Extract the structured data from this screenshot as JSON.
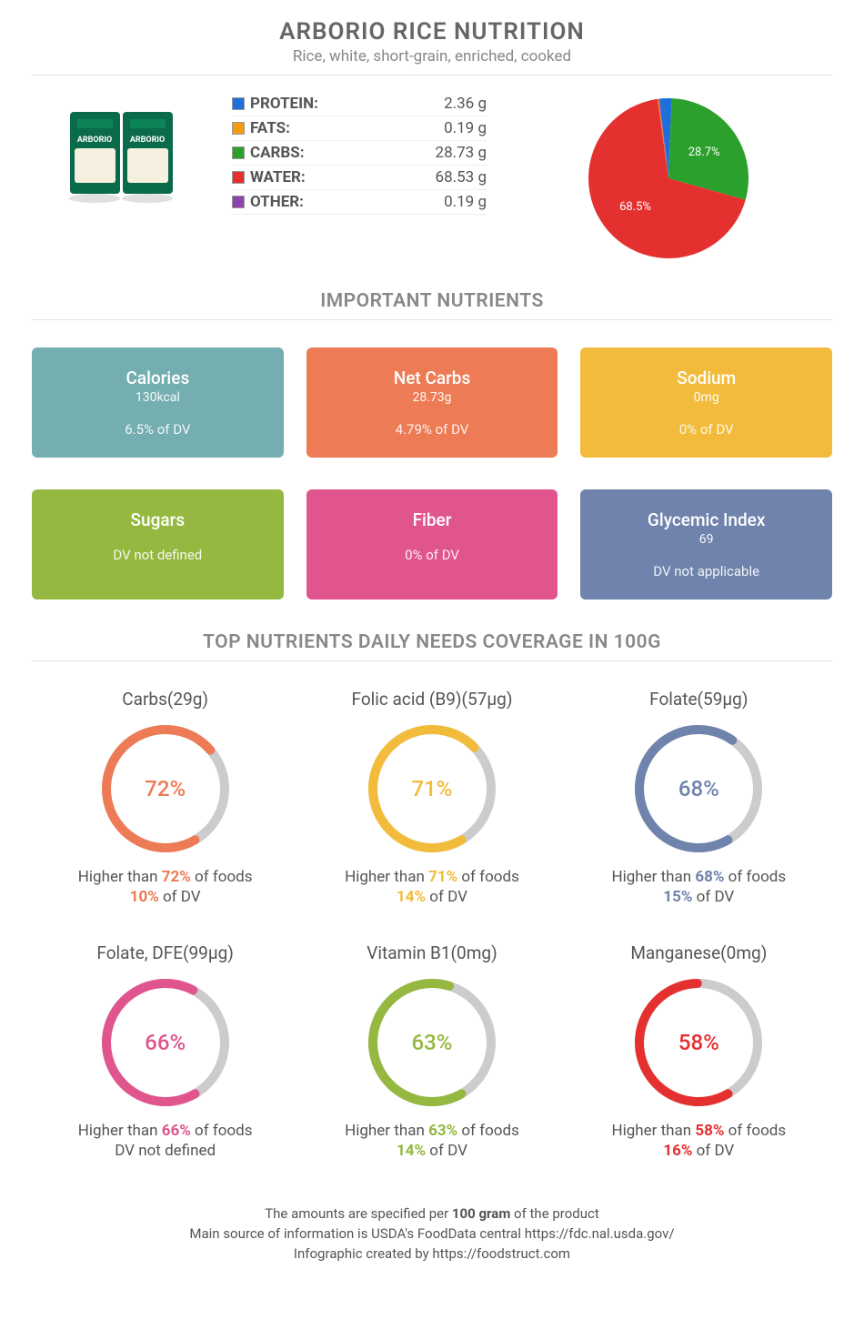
{
  "header": {
    "title": "ARBORIO RICE NUTRITION",
    "subtitle": "Rice, white, short-grain, enriched, cooked"
  },
  "macros": {
    "rows": [
      {
        "label": "PROTEIN:",
        "value": "2.36 g",
        "color": "#1e6fd9"
      },
      {
        "label": "FATS:",
        "value": "0.19 g",
        "color": "#f39c12"
      },
      {
        "label": "CARBS:",
        "value": "28.73 g",
        "color": "#2ca02c"
      },
      {
        "label": "WATER:",
        "value": "68.53 g",
        "color": "#e53030"
      },
      {
        "label": "OTHER:",
        "value": "0.19 g",
        "color": "#8e44ad"
      }
    ],
    "pie": {
      "slices": [
        {
          "label": "28.7%",
          "value": 28.7,
          "color": "#2ca02c"
        },
        {
          "label": "68.5%",
          "value": 68.5,
          "color": "#e53030"
        }
      ],
      "small_slices": [
        {
          "value": 2.4,
          "color": "#1e6fd9"
        },
        {
          "value": 0.2,
          "color": "#f39c12"
        },
        {
          "value": 0.2,
          "color": "#8e44ad"
        }
      ],
      "label_fontsize": 13,
      "label_color": "#ffffff"
    }
  },
  "important_title": "IMPORTANT NUTRIENTS",
  "cards_row1": [
    {
      "title": "Calories",
      "value": "130kcal",
      "dv": "6.5% of DV",
      "bg": "#74aeb0"
    },
    {
      "title": "Net Carbs",
      "value": "28.73g",
      "dv": "4.79% of DV",
      "bg": "#ed7b55"
    },
    {
      "title": "Sodium",
      "value": "0mg",
      "dv": "0% of DV",
      "bg": "#f2bb3b"
    }
  ],
  "cards_row2": [
    {
      "title": "Sugars",
      "value": "",
      "dv": "DV not defined",
      "bg": "#94b840"
    },
    {
      "title": "Fiber",
      "value": "",
      "dv": "0% of DV",
      "bg": "#e0558e"
    },
    {
      "title": "Glycemic Index",
      "value": "69",
      "dv": "DV not applicable",
      "bg": "#6f83ac"
    }
  ],
  "top_nutrients_title": "TOP NUTRIENTS DAILY NEEDS COVERAGE IN 100G",
  "donuts": [
    {
      "label": "Carbs(29g)",
      "pct": 72,
      "color": "#ed7b55",
      "desc_pre": "Higher than ",
      "desc_pct": "72%",
      "desc_post": " of foods",
      "dv_pre": "",
      "dv_strong": "10%",
      "dv_post": " of DV"
    },
    {
      "label": "Folic acid (B9)(57µg)",
      "pct": 71,
      "color": "#f2bb3b",
      "desc_pre": "Higher than ",
      "desc_pct": "71%",
      "desc_post": " of foods",
      "dv_pre": "",
      "dv_strong": "14%",
      "dv_post": " of DV"
    },
    {
      "label": "Folate(59µg)",
      "pct": 68,
      "color": "#6f83ac",
      "desc_pre": "Higher than ",
      "desc_pct": "68%",
      "desc_post": " of foods",
      "dv_pre": "",
      "dv_strong": "15%",
      "dv_post": " of DV"
    },
    {
      "label": "Folate, DFE(99µg)",
      "pct": 66,
      "color": "#e0558e",
      "desc_pre": "Higher than ",
      "desc_pct": "66%",
      "desc_post": " of foods",
      "dv_pre": "",
      "dv_strong": "",
      "dv_post": "DV not defined"
    },
    {
      "label": "Vitamin B1(0mg)",
      "pct": 63,
      "color": "#94b840",
      "desc_pre": "Higher than ",
      "desc_pct": "63%",
      "desc_post": " of foods",
      "dv_pre": "",
      "dv_strong": "14%",
      "dv_post": " of DV"
    },
    {
      "label": "Manganese(0mg)",
      "pct": 58,
      "color": "#e53030",
      "desc_pre": "Higher than ",
      "desc_pct": "58%",
      "desc_post": " of foods",
      "dv_pre": "",
      "dv_strong": "16%",
      "dv_post": " of DV"
    }
  ],
  "donut_style": {
    "bg_ring": "#cccccc",
    "stroke_width": 10,
    "radius": 65,
    "size": 150
  },
  "footer": {
    "line1_pre": "The amounts are specified per ",
    "line1_strong": "100 gram",
    "line1_post": " of the product",
    "line2": "Main source of information is USDA's FoodData central https://fdc.nal.usda.gov/",
    "line3": "Infographic created by https://foodstruct.com"
  }
}
